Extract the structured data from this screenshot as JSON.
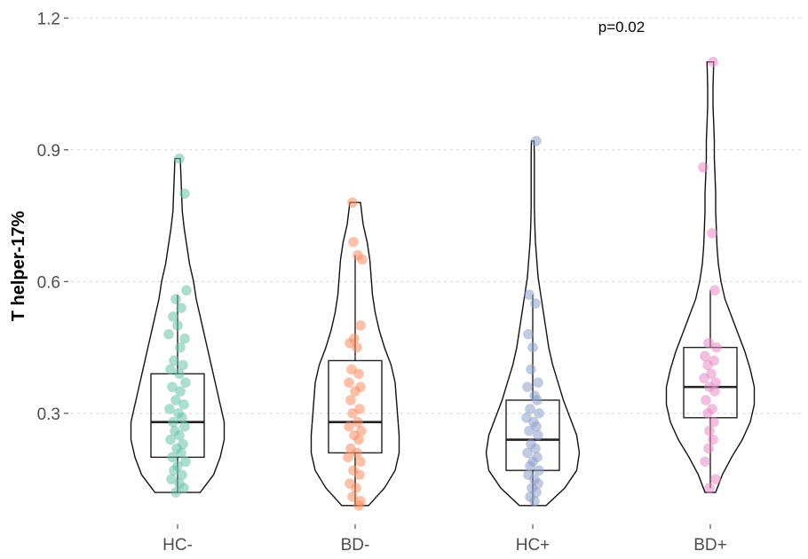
{
  "chart_data": {
    "type": "violin",
    "ylabel": "T helper-17%",
    "ylim": [
      0.06,
      1.2
    ],
    "yticks": [
      0.3,
      0.6,
      0.9,
      1.2
    ],
    "ytick_labels": [
      "0.3",
      "0.6",
      "0.9",
      "1.2"
    ],
    "categories": [
      "HC-",
      "BD-",
      "HC+",
      "BD+"
    ],
    "colors": [
      "#66c2a5",
      "#fc8d62",
      "#8da0cb",
      "#e78ac3"
    ],
    "grid": true,
    "annotation": {
      "text": "p=0.02",
      "category": "BD+"
    },
    "series": [
      {
        "violin": [
          [
            0.12,
            0.17
          ],
          [
            0.16,
            0.27
          ],
          [
            0.2,
            0.32
          ],
          [
            0.24,
            0.35
          ],
          [
            0.28,
            0.35
          ],
          [
            0.32,
            0.32
          ],
          [
            0.36,
            0.29
          ],
          [
            0.4,
            0.26
          ],
          [
            0.44,
            0.23
          ],
          [
            0.48,
            0.2
          ],
          [
            0.52,
            0.17
          ],
          [
            0.56,
            0.14
          ],
          [
            0.6,
            0.12
          ],
          [
            0.64,
            0.09
          ],
          [
            0.68,
            0.07
          ],
          [
            0.72,
            0.05
          ],
          [
            0.76,
            0.035
          ],
          [
            0.8,
            0.03
          ],
          [
            0.84,
            0.025
          ],
          [
            0.88,
            0.02
          ]
        ],
        "box": {
          "min": 0.12,
          "q1": 0.2,
          "median": 0.28,
          "q3": 0.39,
          "max": 0.57
        },
        "points": [
          [
            0.02,
            0.88
          ],
          [
            0.08,
            0.8
          ],
          [
            0.1,
            0.58
          ],
          [
            -0.02,
            0.56
          ],
          [
            0.04,
            0.54
          ],
          [
            -0.05,
            0.52
          ],
          [
            0.0,
            0.5
          ],
          [
            0.08,
            0.47
          ],
          [
            -0.1,
            0.48
          ],
          [
            0.03,
            0.45
          ],
          [
            -0.04,
            0.42
          ],
          [
            0.06,
            0.41
          ],
          [
            -0.08,
            0.4
          ],
          [
            0.02,
            0.39
          ],
          [
            0.09,
            0.37
          ],
          [
            -0.06,
            0.36
          ],
          [
            0.03,
            0.35
          ],
          [
            -0.02,
            0.33
          ],
          [
            0.07,
            0.32
          ],
          [
            -0.09,
            0.31
          ],
          [
            0.01,
            0.3
          ],
          [
            0.05,
            0.29
          ],
          [
            -0.05,
            0.28
          ],
          [
            0.08,
            0.27
          ],
          [
            -0.03,
            0.26
          ],
          [
            0.02,
            0.25
          ],
          [
            -0.08,
            0.24
          ],
          [
            0.06,
            0.23
          ],
          [
            -0.01,
            0.22
          ],
          [
            0.04,
            0.21
          ],
          [
            -0.06,
            0.2
          ],
          [
            0.09,
            0.19
          ],
          [
            0.0,
            0.18
          ],
          [
            -0.04,
            0.17
          ],
          [
            0.05,
            0.16
          ],
          [
            -0.07,
            0.15
          ],
          [
            0.02,
            0.14
          ],
          [
            0.07,
            0.13
          ],
          [
            -0.02,
            0.12
          ]
        ]
      },
      {
        "violin": [
          [
            0.09,
            0.1
          ],
          [
            0.13,
            0.22
          ],
          [
            0.17,
            0.3
          ],
          [
            0.21,
            0.33
          ],
          [
            0.25,
            0.33
          ],
          [
            0.29,
            0.32
          ],
          [
            0.33,
            0.31
          ],
          [
            0.37,
            0.3
          ],
          [
            0.41,
            0.27
          ],
          [
            0.45,
            0.22
          ],
          [
            0.49,
            0.18
          ],
          [
            0.53,
            0.15
          ],
          [
            0.57,
            0.13
          ],
          [
            0.61,
            0.12
          ],
          [
            0.65,
            0.11
          ],
          [
            0.69,
            0.09
          ],
          [
            0.73,
            0.06
          ],
          [
            0.78,
            0.04
          ]
        ],
        "box": {
          "min": 0.09,
          "q1": 0.21,
          "median": 0.28,
          "q3": 0.42,
          "max": 0.66
        },
        "points": [
          [
            -0.03,
            0.78
          ],
          [
            -0.02,
            0.69
          ],
          [
            0.03,
            0.66
          ],
          [
            0.08,
            0.65
          ],
          [
            0.06,
            0.5
          ],
          [
            -0.01,
            0.47
          ],
          [
            -0.06,
            0.46
          ],
          [
            0.02,
            0.45
          ],
          [
            -0.04,
            0.4
          ],
          [
            0.04,
            0.39
          ],
          [
            -0.07,
            0.37
          ],
          [
            0.06,
            0.36
          ],
          [
            0.0,
            0.35
          ],
          [
            -0.05,
            0.33
          ],
          [
            0.05,
            0.31
          ],
          [
            -0.03,
            0.3
          ],
          [
            0.03,
            0.28
          ],
          [
            -0.07,
            0.27
          ],
          [
            0.07,
            0.26
          ],
          [
            -0.01,
            0.25
          ],
          [
            0.04,
            0.24
          ],
          [
            -0.05,
            0.22
          ],
          [
            0.02,
            0.21
          ],
          [
            -0.08,
            0.2
          ],
          [
            0.06,
            0.19
          ],
          [
            -0.02,
            0.17
          ],
          [
            0.05,
            0.16
          ],
          [
            -0.06,
            0.14
          ],
          [
            0.01,
            0.13
          ],
          [
            -0.03,
            0.11
          ],
          [
            0.06,
            0.1
          ],
          [
            0.04,
            0.09
          ]
        ]
      },
      {
        "violin": [
          [
            0.09,
            0.1
          ],
          [
            0.13,
            0.24
          ],
          [
            0.17,
            0.33
          ],
          [
            0.21,
            0.35
          ],
          [
            0.25,
            0.33
          ],
          [
            0.29,
            0.28
          ],
          [
            0.33,
            0.23
          ],
          [
            0.37,
            0.19
          ],
          [
            0.41,
            0.15
          ],
          [
            0.45,
            0.12
          ],
          [
            0.49,
            0.1
          ],
          [
            0.53,
            0.08
          ],
          [
            0.57,
            0.06
          ],
          [
            0.61,
            0.04
          ],
          [
            0.65,
            0.03
          ],
          [
            0.69,
            0.02
          ],
          [
            0.73,
            0.015
          ],
          [
            0.77,
            0.012
          ],
          [
            0.81,
            0.012
          ],
          [
            0.85,
            0.012
          ],
          [
            0.89,
            0.012
          ],
          [
            0.92,
            0.01
          ]
        ],
        "box": {
          "min": 0.09,
          "q1": 0.17,
          "median": 0.24,
          "q3": 0.33,
          "max": 0.57
        },
        "points": [
          [
            0.04,
            0.92
          ],
          [
            -0.04,
            0.57
          ],
          [
            0.03,
            0.55
          ],
          [
            -0.05,
            0.48
          ],
          [
            0.0,
            0.45
          ],
          [
            -0.02,
            0.4
          ],
          [
            0.06,
            0.37
          ],
          [
            -0.06,
            0.36
          ],
          [
            0.02,
            0.34
          ],
          [
            0.05,
            0.33
          ],
          [
            -0.03,
            0.31
          ],
          [
            0.07,
            0.3
          ],
          [
            -0.07,
            0.29
          ],
          [
            0.01,
            0.28
          ],
          [
            0.04,
            0.27
          ],
          [
            -0.04,
            0.26
          ],
          [
            0.06,
            0.25
          ],
          [
            -0.02,
            0.23
          ],
          [
            0.03,
            0.22
          ],
          [
            -0.06,
            0.21
          ],
          [
            0.05,
            0.2
          ],
          [
            0.0,
            0.19
          ],
          [
            -0.03,
            0.18
          ],
          [
            0.07,
            0.17
          ],
          [
            -0.05,
            0.16
          ],
          [
            0.02,
            0.15
          ],
          [
            0.06,
            0.14
          ],
          [
            -0.01,
            0.13
          ],
          [
            0.04,
            0.12
          ],
          [
            -0.03,
            0.11
          ],
          [
            0.02,
            0.1
          ]
        ]
      },
      {
        "violin": [
          [
            0.12,
            0.04
          ],
          [
            0.16,
            0.09
          ],
          [
            0.2,
            0.16
          ],
          [
            0.24,
            0.24
          ],
          [
            0.28,
            0.3
          ],
          [
            0.32,
            0.33
          ],
          [
            0.36,
            0.33
          ],
          [
            0.4,
            0.3
          ],
          [
            0.44,
            0.26
          ],
          [
            0.48,
            0.21
          ],
          [
            0.52,
            0.16
          ],
          [
            0.56,
            0.11
          ],
          [
            0.6,
            0.08
          ],
          [
            0.64,
            0.06
          ],
          [
            0.68,
            0.05
          ],
          [
            0.72,
            0.045
          ],
          [
            0.76,
            0.04
          ],
          [
            0.8,
            0.04
          ],
          [
            0.84,
            0.035
          ],
          [
            0.88,
            0.03
          ],
          [
            0.92,
            0.03
          ],
          [
            0.96,
            0.025
          ],
          [
            1.0,
            0.02
          ],
          [
            1.04,
            0.02
          ],
          [
            1.1,
            0.025
          ]
        ],
        "box": {
          "min": 0.13,
          "q1": 0.29,
          "median": 0.36,
          "q3": 0.45,
          "max": 0.58
        },
        "points": [
          [
            0.03,
            1.1
          ],
          [
            -0.08,
            0.86
          ],
          [
            0.02,
            0.71
          ],
          [
            0.05,
            0.58
          ],
          [
            -0.02,
            0.46
          ],
          [
            0.07,
            0.45
          ],
          [
            -0.06,
            0.43
          ],
          [
            0.04,
            0.42
          ],
          [
            -0.03,
            0.41
          ],
          [
            0.01,
            0.39
          ],
          [
            -0.07,
            0.38
          ],
          [
            0.06,
            0.37
          ],
          [
            -0.01,
            0.36
          ],
          [
            0.05,
            0.35
          ],
          [
            -0.05,
            0.33
          ],
          [
            0.02,
            0.31
          ],
          [
            -0.03,
            0.3
          ],
          [
            0.04,
            0.28
          ],
          [
            -0.01,
            0.26
          ],
          [
            0.03,
            0.24
          ],
          [
            -0.02,
            0.22
          ],
          [
            -0.06,
            0.19
          ],
          [
            0.06,
            0.15
          ],
          [
            -0.01,
            0.13
          ]
        ]
      }
    ]
  }
}
